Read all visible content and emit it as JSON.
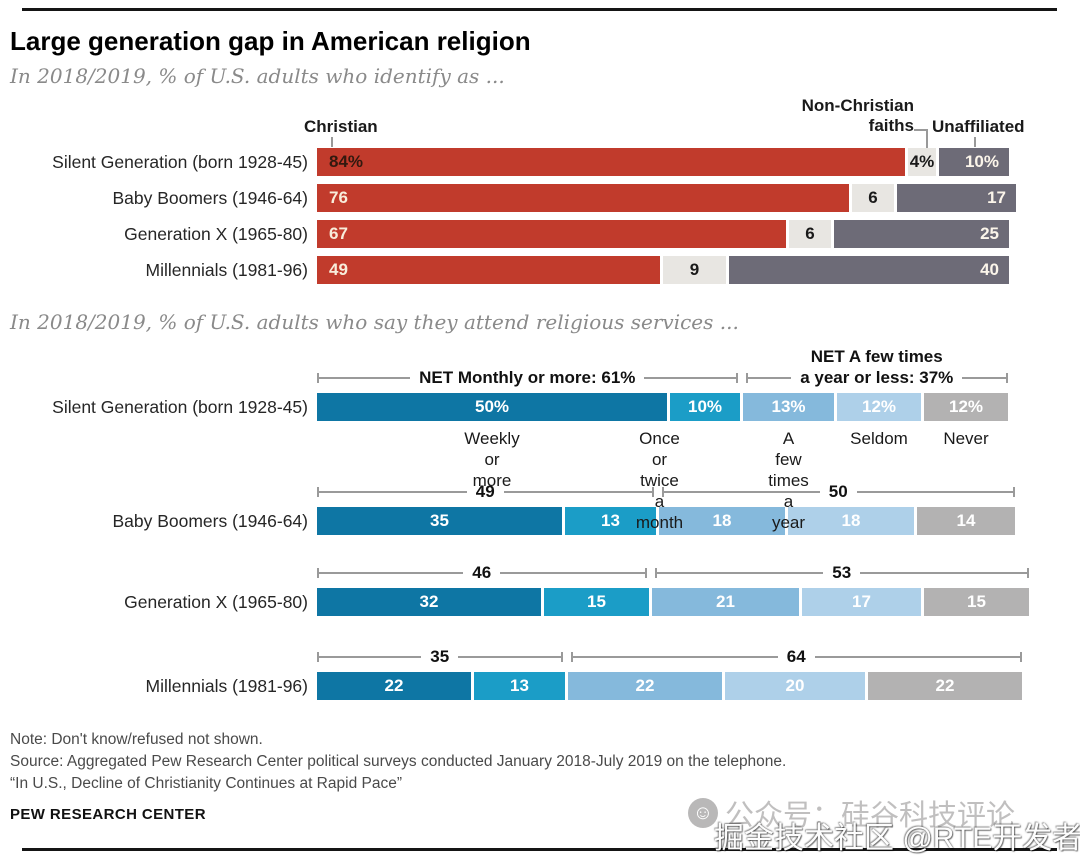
{
  "page": {
    "title": "Large generation gap in American religion",
    "notes": [
      "Note: Don't know/refused not shown.",
      "Source: Aggregated Pew Research Center political surveys conducted January 2018-July 2019 on the telephone.",
      "“In U.S., Decline of Christianity Continues at Rapid Pace”"
    ],
    "brand": "PEW RESEARCH CENTER",
    "watermark_back": "公众号：硅谷科技评论",
    "watermark_front": "掘金技术社区 @RTE开发者社区"
  },
  "chart_data": [
    {
      "type": "bar",
      "orientation": "horizontal",
      "stacked": true,
      "title": "In 2018/2019, % of U.S. adults who identify as ...",
      "column_headers": [
        "Christian",
        "Non-Christian faiths",
        "Unaffiliated"
      ],
      "categories": [
        "Silent Generation (born 1928-45)",
        "Baby Boomers (1946-64)",
        "Generation X (1965-80)",
        "Millennials (1981-96)"
      ],
      "series": [
        {
          "name": "Christian",
          "color": "#c13b2c",
          "values": [
            84,
            76,
            67,
            49
          ]
        },
        {
          "name": "Non-Christian faiths",
          "color": "#e8e6e2",
          "values": [
            4,
            6,
            6,
            9
          ]
        },
        {
          "name": "Unaffiliated",
          "color": "#6d6b77",
          "values": [
            10,
            17,
            25,
            40
          ]
        }
      ],
      "value_labels": [
        [
          "84%",
          "4%",
          "10%"
        ],
        [
          "76",
          "6",
          "17"
        ],
        [
          "67",
          "6",
          "25"
        ],
        [
          "49",
          "9",
          "40"
        ]
      ],
      "value_label_colors": [
        [
          "#32190f",
          "#1a1a1a",
          "#fbf5ea"
        ],
        [
          "#f8eddb",
          "#1a1a1a",
          "#fbf5ea"
        ],
        [
          "#f8eddb",
          "#1a1a1a",
          "#fbf5ea"
        ],
        [
          "#f8eddb",
          "#1a1a1a",
          "#fbf5ea"
        ]
      ],
      "xlim": [
        0,
        100
      ],
      "grid": false,
      "legend_position": "top"
    },
    {
      "type": "bar",
      "orientation": "horizontal",
      "stacked": true,
      "title": "In 2018/2019, % of U.S. adults who say they attend religious services ...",
      "categories": [
        "Silent Generation (born 1928-45)",
        "Baby Boomers (1946-64)",
        "Generation X (1965-80)",
        "Millennials (1981-96)"
      ],
      "series": [
        {
          "name": "Weekly or more",
          "color": "#0e76a4",
          "values": [
            50,
            35,
            32,
            22
          ]
        },
        {
          "name": "Once or twice a month",
          "color": "#1b9dc7",
          "values": [
            10,
            13,
            15,
            13
          ]
        },
        {
          "name": "A few times a year",
          "color": "#85b9dc",
          "values": [
            13,
            18,
            21,
            22
          ]
        },
        {
          "name": "Seldom",
          "color": "#aed0e9",
          "values": [
            12,
            18,
            17,
            20
          ]
        },
        {
          "name": "Never",
          "color": "#b3b2b2",
          "values": [
            12,
            14,
            15,
            22
          ]
        }
      ],
      "value_labels": [
        [
          "50%",
          "10%",
          "13%",
          "12%",
          "12%"
        ],
        [
          "35",
          "13",
          "18",
          "18",
          "14"
        ],
        [
          "32",
          "15",
          "21",
          "17",
          "15"
        ],
        [
          "22",
          "13",
          "22",
          "20",
          "22"
        ]
      ],
      "value_label_color": "#ffffff",
      "net_brackets": [
        {
          "left_label": "NET Monthly or more: 61%",
          "right_label": "NET A few times\na year or less: 37%"
        },
        {
          "left_label": "49",
          "right_label": "50"
        },
        {
          "left_label": "46",
          "right_label": "53"
        },
        {
          "left_label": "35",
          "right_label": "64"
        }
      ],
      "category_axis_labels": [
        "Weekly or more",
        "Once or twice a month",
        "A few times a year",
        "Seldom",
        "Never"
      ],
      "label_centers_u": [
        25,
        48.5,
        66.5,
        79,
        91
      ],
      "xlim": [
        0,
        100
      ],
      "grid": false,
      "legend_position": "below-first-bar"
    }
  ]
}
